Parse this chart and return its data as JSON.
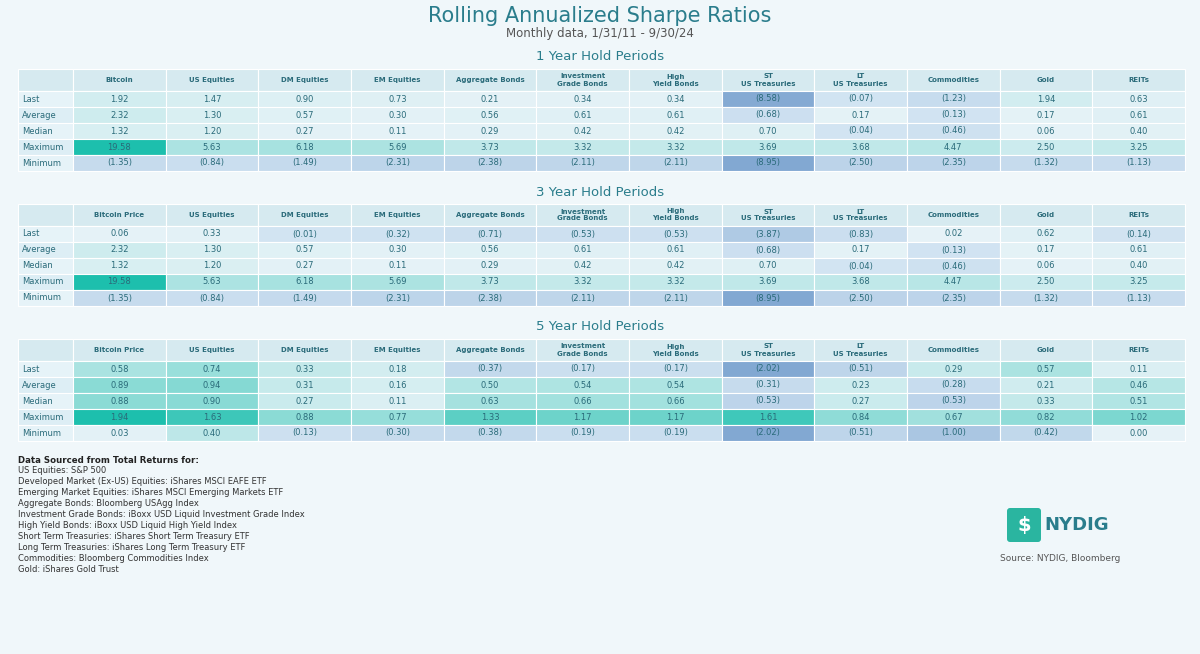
{
  "title": "Rolling Annualized Sharpe Ratios",
  "subtitle": "Monthly data, 1/31/11 - 9/30/24",
  "background_color": "#f0f7fa",
  "table1": {
    "title": "1 Year Hold Periods",
    "col_header": [
      "Bitcoin",
      "US Equities",
      "DM Equities",
      "EM Equities",
      "Aggregate Bonds",
      "Investment Grade Bonds",
      "High Yield Bonds",
      "ST US Treasuries",
      "LT US Treasuries",
      "Commodities",
      "Gold",
      "REITs"
    ],
    "rows": [
      "Last",
      "Average",
      "Median",
      "Maximum",
      "Minimum"
    ],
    "data": [
      [
        1.92,
        1.47,
        0.9,
        0.73,
        0.21,
        0.34,
        0.34,
        -8.58,
        -0.07,
        -1.23,
        1.94,
        0.63
      ],
      [
        2.32,
        1.3,
        0.57,
        0.3,
        0.56,
        0.61,
        0.61,
        -0.68,
        0.17,
        -0.13,
        0.17,
        0.61
      ],
      [
        1.32,
        1.2,
        0.27,
        0.11,
        0.29,
        0.42,
        0.42,
        0.7,
        -0.04,
        -0.46,
        0.06,
        0.4
      ],
      [
        19.58,
        5.63,
        6.18,
        5.69,
        3.73,
        3.32,
        3.32,
        3.69,
        3.68,
        4.47,
        2.5,
        3.25
      ],
      [
        -1.35,
        -0.84,
        -1.49,
        -2.31,
        -2.38,
        -2.11,
        -2.11,
        -8.95,
        -2.5,
        -2.35,
        -1.32,
        -1.13
      ]
    ],
    "display": [
      [
        "1.92",
        "1.47",
        "0.90",
        "0.73",
        "0.21",
        "0.34",
        "0.34",
        "(8.58)",
        "(0.07)",
        "(1.23)",
        "1.94",
        "0.63"
      ],
      [
        "2.32",
        "1.30",
        "0.57",
        "0.30",
        "0.56",
        "0.61",
        "0.61",
        "(0.68)",
        "0.17",
        "(0.13)",
        "0.17",
        "0.61"
      ],
      [
        "1.32",
        "1.20",
        "0.27",
        "0.11",
        "0.29",
        "0.42",
        "0.42",
        "0.70",
        "(0.04)",
        "(0.46)",
        "0.06",
        "0.40"
      ],
      [
        "19.58",
        "5.63",
        "6.18",
        "5.69",
        "3.73",
        "3.32",
        "3.32",
        "3.69",
        "3.68",
        "4.47",
        "2.50",
        "3.25"
      ],
      [
        "(1.35)",
        "(0.84)",
        "(1.49)",
        "(2.31)",
        "(2.38)",
        "(2.11)",
        "(2.11)",
        "(8.95)",
        "(2.50)",
        "(2.35)",
        "(1.32)",
        "(1.13)"
      ]
    ]
  },
  "table2": {
    "title": "3 Year Hold Periods",
    "col_header": [
      "Bitcoin Price",
      "US Equities",
      "DM Equities",
      "EM Equities",
      "Aggregate Bonds",
      "Investment Grade Bonds",
      "High Yield Bonds",
      "ST US Treasuries",
      "LT US Treasuries",
      "Commodities",
      "Gold",
      "REITs"
    ],
    "rows": [
      "Last",
      "Average",
      "Median",
      "Maximum",
      "Minimum"
    ],
    "data": [
      [
        0.06,
        0.33,
        -0.01,
        -0.32,
        -0.71,
        -0.53,
        -0.53,
        -3.87,
        -0.83,
        0.02,
        0.62,
        -0.14
      ],
      [
        2.32,
        1.3,
        0.57,
        0.3,
        0.56,
        0.61,
        0.61,
        -0.68,
        0.17,
        -0.13,
        0.17,
        0.61
      ],
      [
        1.32,
        1.2,
        0.27,
        0.11,
        0.29,
        0.42,
        0.42,
        0.7,
        -0.04,
        -0.46,
        0.06,
        0.4
      ],
      [
        19.58,
        5.63,
        6.18,
        5.69,
        3.73,
        3.32,
        3.32,
        3.69,
        3.68,
        4.47,
        2.5,
        3.25
      ],
      [
        -1.35,
        -0.84,
        -1.49,
        -2.31,
        -2.38,
        -2.11,
        -2.11,
        -8.95,
        -2.5,
        -2.35,
        -1.32,
        -1.13
      ]
    ],
    "display": [
      [
        "0.06",
        "0.33",
        "(0.01)",
        "(0.32)",
        "(0.71)",
        "(0.53)",
        "(0.53)",
        "(3.87)",
        "(0.83)",
        "0.02",
        "0.62",
        "(0.14)"
      ],
      [
        "2.32",
        "1.30",
        "0.57",
        "0.30",
        "0.56",
        "0.61",
        "0.61",
        "(0.68)",
        "0.17",
        "(0.13)",
        "0.17",
        "0.61"
      ],
      [
        "1.32",
        "1.20",
        "0.27",
        "0.11",
        "0.29",
        "0.42",
        "0.42",
        "0.70",
        "(0.04)",
        "(0.46)",
        "0.06",
        "0.40"
      ],
      [
        "19.58",
        "5.63",
        "6.18",
        "5.69",
        "3.73",
        "3.32",
        "3.32",
        "3.69",
        "3.68",
        "4.47",
        "2.50",
        "3.25"
      ],
      [
        "(1.35)",
        "(0.84)",
        "(1.49)",
        "(2.31)",
        "(2.38)",
        "(2.11)",
        "(2.11)",
        "(8.95)",
        "(2.50)",
        "(2.35)",
        "(1.32)",
        "(1.13)"
      ]
    ]
  },
  "table3": {
    "title": "5 Year Hold Periods",
    "col_header": [
      "Bitcoin Price",
      "US Equities",
      "DM Equities",
      "EM Equities",
      "Aggregate Bonds",
      "Investment Grade Bonds",
      "High Yield Bonds",
      "ST US Treasuries",
      "LT US Treasuries",
      "Commodities",
      "Gold",
      "REITs"
    ],
    "rows": [
      "Last",
      "Average",
      "Median",
      "Maximum",
      "Minimum"
    ],
    "data": [
      [
        0.58,
        0.74,
        0.33,
        0.18,
        -0.37,
        -0.17,
        -0.17,
        -2.02,
        -0.51,
        0.29,
        0.57,
        0.11
      ],
      [
        0.89,
        0.94,
        0.31,
        0.16,
        0.5,
        0.54,
        0.54,
        -0.31,
        0.23,
        -0.28,
        0.21,
        0.46
      ],
      [
        0.88,
        0.9,
        0.27,
        0.11,
        0.63,
        0.66,
        0.66,
        -0.53,
        0.27,
        -0.53,
        0.33,
        0.51
      ],
      [
        1.94,
        1.63,
        0.88,
        0.77,
        1.33,
        1.17,
        1.17,
        1.61,
        0.84,
        0.67,
        0.82,
        1.02
      ],
      [
        0.03,
        0.4,
        -0.13,
        -0.3,
        -0.38,
        -0.19,
        -0.19,
        -2.02,
        -0.51,
        -1.0,
        -0.42,
        0.0
      ]
    ],
    "display": [
      [
        "0.58",
        "0.74",
        "0.33",
        "0.18",
        "(0.37)",
        "(0.17)",
        "(0.17)",
        "(2.02)",
        "(0.51)",
        "0.29",
        "0.57",
        "0.11"
      ],
      [
        "0.89",
        "0.94",
        "0.31",
        "0.16",
        "0.50",
        "0.54",
        "0.54",
        "(0.31)",
        "0.23",
        "(0.28)",
        "0.21",
        "0.46"
      ],
      [
        "0.88",
        "0.90",
        "0.27",
        "0.11",
        "0.63",
        "0.66",
        "0.66",
        "(0.53)",
        "0.27",
        "(0.53)",
        "0.33",
        "0.51"
      ],
      [
        "1.94",
        "1.63",
        "0.88",
        "0.77",
        "1.33",
        "1.17",
        "1.17",
        "1.61",
        "0.84",
        "0.67",
        "0.82",
        "1.02"
      ],
      [
        "0.03",
        "0.40",
        "(0.13)",
        "(0.30)",
        "(0.38)",
        "(0.19)",
        "(0.19)",
        "(2.02)",
        "(0.51)",
        "(1.00)",
        "(0.42)",
        "0.00"
      ]
    ]
  },
  "footnotes": [
    "Data Sourced from Total Returns for:",
    "US Equities: S&P 500",
    "Developed Market (Ex-US) Equities: iShares MSCI EAFE ETF",
    "Emerging Market Equities: iShares MSCI Emerging Markets ETF",
    "Aggregate Bonds: Bloomberg USAgg Index",
    "Investment Grade Bonds: iBoxx USD Liquid Investment Grade Index",
    "High Yield Bonds: iBoxx USD Liquid High Yield Index",
    "Short Term Treasuries: iShares Short Term Treasury ETF",
    "Long Term Treasuries: iShares Long Term Treasury ETF",
    "Commodities: Bloomberg Commodities Index",
    "Gold: iShares Gold Trust"
  ]
}
